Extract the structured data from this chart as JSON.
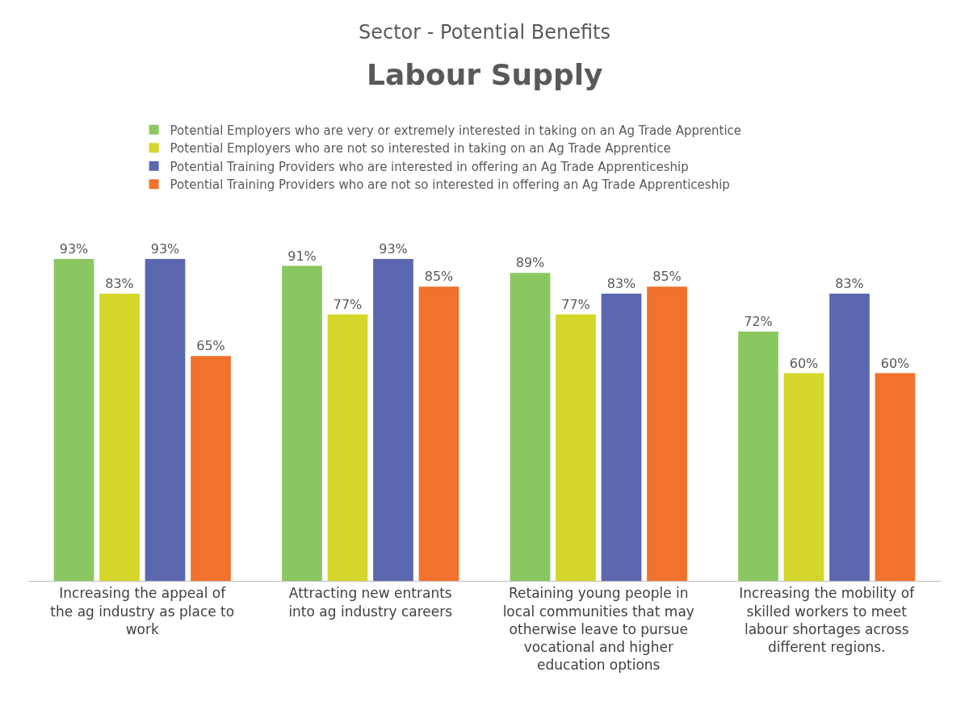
{
  "chart_data": {
    "type": "bar",
    "title": "Sector - Potential Benefits",
    "subtitle": "Labour Supply",
    "categories": [
      "Increasing the appeal of the ag industry as place to work",
      "Attracting new entrants into ag industry careers",
      "Retaining young people in local communities that may otherwise leave to pursue vocational and higher education options",
      "Increasing the mobility of skilled workers to meet labour shortages across different regions."
    ],
    "series": [
      {
        "name": "Potential Employers who are very or extremely interested in taking on an Ag Trade Apprentice",
        "color": "#8bc760",
        "values": [
          93,
          91,
          89,
          72
        ],
        "value_labels": [
          "93%",
          "91%",
          "89%",
          "72%"
        ]
      },
      {
        "name": "Potential Employers who are not so interested in taking on an Ag Trade Apprentice",
        "color": "#d4d62a",
        "values": [
          83,
          77,
          77,
          60
        ],
        "value_labels": [
          "83%",
          "77%",
          "77%",
          "60%"
        ]
      },
      {
        "name": "Potential Training Providers who are interested in offering an Ag Trade Apprenticeship",
        "color": "#5b67ae",
        "values": [
          93,
          93,
          83,
          83
        ],
        "value_labels": [
          "93%",
          "93%",
          "83%",
          "83%"
        ]
      },
      {
        "name": "Potential Training Providers who are not so interested in offering an Ag Trade Apprenticeship",
        "color": "#f0722c",
        "values": [
          65,
          85,
          85,
          60
        ],
        "value_labels": [
          "65%",
          "85%",
          "85%",
          "60%"
        ]
      }
    ],
    "legend": "top"
  }
}
